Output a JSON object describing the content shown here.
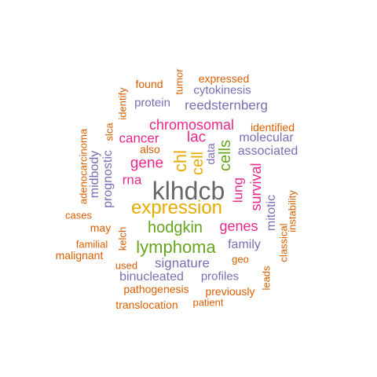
{
  "palette": {
    "orange": "#D95F02",
    "purple": "#7570B3",
    "magenta": "#E7298A",
    "green": "#66A61E",
    "gold": "#E6AB02",
    "gray": "#666666"
  },
  "words": [
    {
      "text": "klhdcb",
      "color": "gray"
    },
    {
      "text": "expression",
      "color": "gold"
    },
    {
      "text": "lymphoma",
      "color": "green"
    },
    {
      "text": "hodgkin",
      "color": "green"
    },
    {
      "text": "chromosomal",
      "color": "magenta"
    },
    {
      "text": "cell",
      "color": "gold"
    },
    {
      "text": "chl",
      "color": "gold"
    },
    {
      "text": "cells",
      "color": "green"
    },
    {
      "text": "gene",
      "color": "magenta"
    },
    {
      "text": "genes",
      "color": "magenta"
    },
    {
      "text": "lac",
      "color": "magenta"
    },
    {
      "text": "cancer",
      "color": "magenta"
    },
    {
      "text": "survival",
      "color": "magenta"
    },
    {
      "text": "lung",
      "color": "magenta"
    },
    {
      "text": "rna",
      "color": "magenta"
    },
    {
      "text": "reedsternberg",
      "color": "purple"
    },
    {
      "text": "signature",
      "color": "purple"
    },
    {
      "text": "binucleated",
      "color": "purple"
    },
    {
      "text": "family",
      "color": "purple"
    },
    {
      "text": "molecular",
      "color": "purple"
    },
    {
      "text": "associated",
      "color": "purple"
    },
    {
      "text": "protein",
      "color": "purple"
    },
    {
      "text": "cytokinesis",
      "color": "purple"
    },
    {
      "text": "profiles",
      "color": "purple"
    },
    {
      "text": "prognostic",
      "color": "purple"
    },
    {
      "text": "midbody",
      "color": "purple"
    },
    {
      "text": "mitotic",
      "color": "purple"
    },
    {
      "text": "data",
      "color": "purple"
    },
    {
      "text": "expressed",
      "color": "orange"
    },
    {
      "text": "found",
      "color": "orange"
    },
    {
      "text": "tumor",
      "color": "orange"
    },
    {
      "text": "identify",
      "color": "orange"
    },
    {
      "text": "identified",
      "color": "orange"
    },
    {
      "text": "also",
      "color": "orange"
    },
    {
      "text": "slca",
      "color": "orange"
    },
    {
      "text": "adenocarcinoma",
      "color": "orange"
    },
    {
      "text": "instability",
      "color": "orange"
    },
    {
      "text": "cases",
      "color": "orange"
    },
    {
      "text": "may",
      "color": "orange"
    },
    {
      "text": "familial",
      "color": "orange"
    },
    {
      "text": "malignant",
      "color": "orange"
    },
    {
      "text": "kelch",
      "color": "orange"
    },
    {
      "text": "classical",
      "color": "orange"
    },
    {
      "text": "geo",
      "color": "orange"
    },
    {
      "text": "used",
      "color": "orange"
    },
    {
      "text": "leads",
      "color": "orange"
    },
    {
      "text": "previously",
      "color": "orange"
    },
    {
      "text": "pathogenesis",
      "color": "orange"
    },
    {
      "text": "patient",
      "color": "orange"
    },
    {
      "text": "translocation",
      "color": "orange"
    }
  ]
}
